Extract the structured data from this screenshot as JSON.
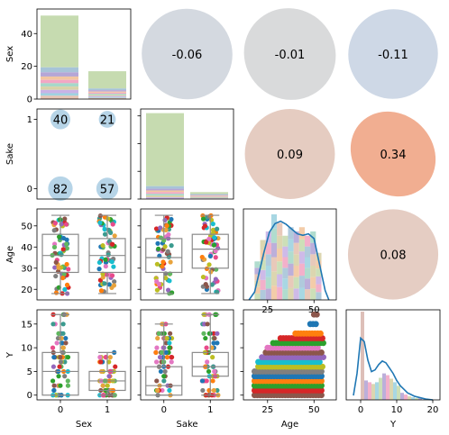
{
  "chart_data": {
    "type": "pairplot",
    "variables": [
      "Sex",
      "Sake",
      "Age",
      "Y"
    ],
    "axis_labels": {
      "x": [
        "Sex",
        "Sake",
        "Age",
        "Y"
      ],
      "y": [
        "Sex",
        "Sake",
        "Age",
        "Y"
      ]
    },
    "tick_labels": {
      "sex_sake_x": [
        "0",
        "1"
      ],
      "age_x": [
        "25",
        "50"
      ],
      "y_x": [
        "0",
        "10",
        "20"
      ],
      "sex_y": [
        "0",
        "20",
        "40"
      ],
      "sake_y": [
        "0",
        "1"
      ],
      "age_y": [
        "20",
        "30",
        "40",
        "50"
      ],
      "y_y": [
        "0",
        "5",
        "10",
        "15"
      ]
    },
    "correlations": [
      {
        "pair": [
          "Sex",
          "Sake"
        ],
        "label": "-0.06",
        "value": -0.06
      },
      {
        "pair": [
          "Sex",
          "Age"
        ],
        "label": "-0.01",
        "value": -0.01
      },
      {
        "pair": [
          "Sex",
          "Y"
        ],
        "label": "-0.11",
        "value": -0.11
      },
      {
        "pair": [
          "Sake",
          "Age"
        ],
        "label": "0.09",
        "value": 0.09
      },
      {
        "pair": [
          "Sake",
          "Y"
        ],
        "label": "0.34",
        "value": 0.34
      },
      {
        "pair": [
          "Age",
          "Y"
        ],
        "label": "0.08",
        "value": 0.08
      }
    ],
    "sex_sake_counts": [
      {
        "sex": 0,
        "sake": 1,
        "label": "40",
        "count": 40
      },
      {
        "sex": 1,
        "sake": 1,
        "label": "21",
        "count": 21
      },
      {
        "sex": 0,
        "sake": 0,
        "label": "82",
        "count": 82
      },
      {
        "sex": 1,
        "sake": 0,
        "label": "57",
        "count": 57
      }
    ],
    "hist_sex": {
      "categories": [
        0,
        1
      ],
      "counts": [
        51,
        17
      ],
      "ylim": [
        0,
        55
      ]
    },
    "hist_sake": {
      "categories": [
        0,
        1
      ],
      "counts": [
        62,
        5
      ],
      "ylim": [
        0,
        65
      ]
    },
    "box_age_by_sex": [
      {
        "group": 0,
        "min": 18,
        "q1": 28,
        "median": 36,
        "q3": 46,
        "max": 55
      },
      {
        "group": 1,
        "min": 18,
        "q1": 28,
        "median": 36,
        "q3": 44,
        "max": 55
      }
    ],
    "box_age_by_sake": [
      {
        "group": 0,
        "min": 18,
        "q1": 28,
        "median": 35,
        "q3": 44,
        "max": 55
      },
      {
        "group": 1,
        "min": 18,
        "q1": 30,
        "median": 39,
        "q3": 46,
        "max": 55
      }
    ],
    "box_y_by_sex": [
      {
        "group": 0,
        "min": 0,
        "q1": 0,
        "median": 5,
        "q3": 9,
        "max": 17
      },
      {
        "group": 1,
        "min": 0,
        "q1": 1,
        "median": 3,
        "q3": 5,
        "max": 9
      }
    ],
    "box_y_by_sake": [
      {
        "group": 0,
        "min": 0,
        "q1": 0,
        "median": 2,
        "q3": 6,
        "max": 15
      },
      {
        "group": 1,
        "min": 0,
        "q1": 4,
        "median": 6,
        "q3": 9,
        "max": 17
      }
    ],
    "age_distribution": {
      "kde_x": [
        15,
        18,
        20,
        23,
        26,
        29,
        32,
        35,
        38,
        41,
        44,
        47,
        50,
        53,
        56,
        58
      ],
      "kde_y": [
        0.0,
        0.1,
        0.3,
        0.6,
        0.86,
        0.97,
        1.0,
        0.96,
        0.9,
        0.84,
        0.82,
        0.84,
        0.78,
        0.45,
        0.12,
        0.0
      ],
      "hist_bins": [
        18,
        21,
        24,
        27,
        30,
        33,
        36,
        39,
        42,
        45,
        48,
        51,
        54
      ],
      "hist_rel": [
        0.45,
        0.7,
        0.8,
        1.0,
        0.9,
        0.75,
        0.85,
        0.8,
        0.85,
        0.75,
        0.8,
        0.55
      ],
      "xlim": [
        12,
        62
      ]
    },
    "y_distribution": {
      "kde_x": [
        -2,
        -1,
        0,
        1,
        2,
        3,
        4,
        5,
        6,
        7,
        8,
        9,
        10,
        11,
        12,
        13,
        14,
        15,
        16,
        17,
        18,
        19,
        20
      ],
      "kde_y": [
        0.05,
        0.3,
        0.7,
        0.66,
        0.45,
        0.32,
        0.34,
        0.4,
        0.44,
        0.42,
        0.36,
        0.3,
        0.22,
        0.16,
        0.12,
        0.08,
        0.06,
        0.04,
        0.03,
        0.02,
        0.01,
        0.005,
        0.0
      ],
      "hist_bins": [
        0,
        1,
        2,
        3,
        4,
        5,
        6,
        7,
        8,
        9,
        10,
        11,
        12,
        13,
        14,
        15,
        16,
        17
      ],
      "hist_rel": [
        1.0,
        0.22,
        0.2,
        0.18,
        0.2,
        0.25,
        0.3,
        0.28,
        0.24,
        0.2,
        0.16,
        0.08,
        0.06,
        0.04,
        0.03,
        0.02,
        0.02
      ],
      "xlim": [
        -4,
        22
      ]
    },
    "age_vs_y_scatter": {
      "y_levels": [
        0,
        1,
        2,
        3,
        4,
        5,
        6,
        7,
        8,
        9,
        10,
        11,
        12,
        13,
        15,
        17
      ],
      "x_ranges": [
        [
          18,
          55
        ],
        [
          18,
          55
        ],
        [
          18,
          55
        ],
        [
          18,
          54
        ],
        [
          18,
          55
        ],
        [
          18,
          55
        ],
        [
          20,
          55
        ],
        [
          20,
          54
        ],
        [
          22,
          55
        ],
        [
          24,
          54
        ],
        [
          25,
          53
        ],
        [
          28,
          55
        ],
        [
          32,
          55
        ],
        [
          40,
          54
        ],
        [
          48,
          52
        ],
        [
          50,
          52
        ]
      ]
    }
  }
}
